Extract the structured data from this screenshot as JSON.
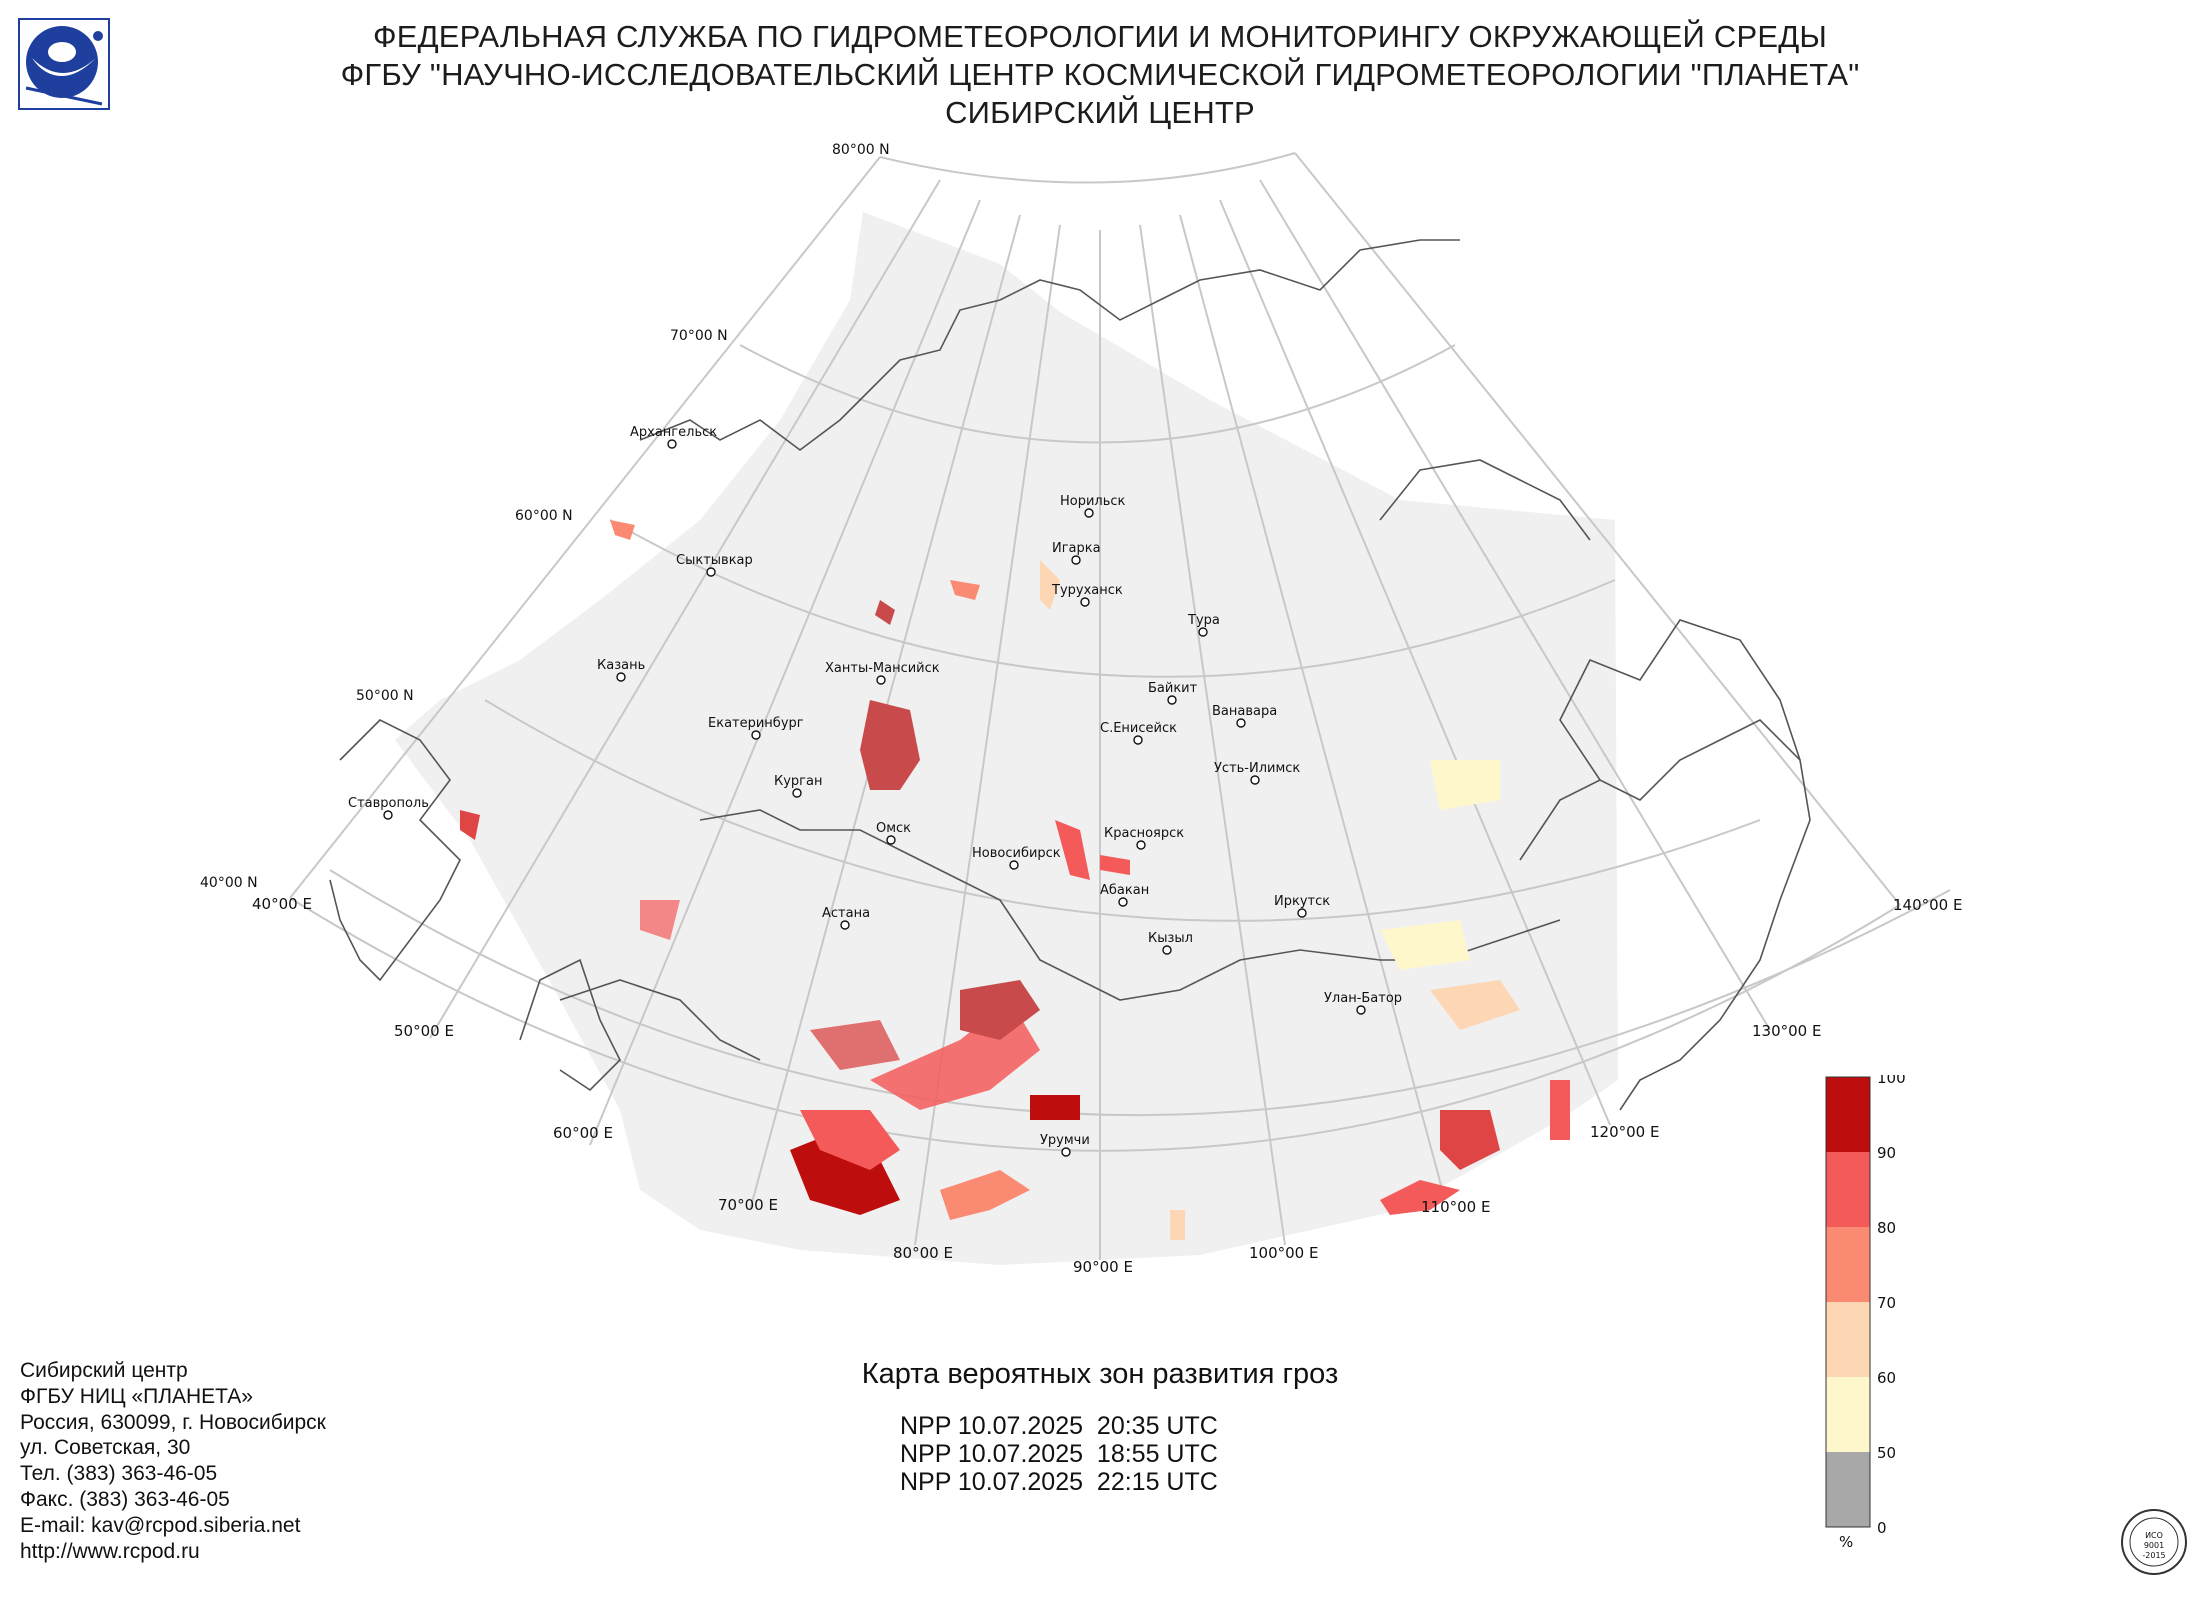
{
  "header": {
    "line1": "ФЕДЕРАЛЬНАЯ СЛУЖБА ПО ГИДРОМЕТЕОРОЛОГИИ И МОНИТОРИНГУ ОКРУЖАЮЩЕЙ СРЕДЫ",
    "line2": "ФГБУ \"НАУЧНО-ИССЛЕДОВАТЕЛЬСКИЙ ЦЕНТР КОСМИЧЕСКОЙ ГИДРОМЕТЕОРОЛОГИИ \"ПЛАНЕТА\"",
    "line3": "СИБИРСКИЙ ЦЕНТР"
  },
  "logo": {
    "icon": "planeta-logo",
    "color": "#1f3f9f"
  },
  "map": {
    "lat_labels": [
      "80°00 N",
      "70°00 N",
      "60°00 N",
      "50°00 N",
      "40°00 N"
    ],
    "lon_labels": [
      "40°00 E",
      "50°00 E",
      "60°00 E",
      "70°00 E",
      "80°00 E",
      "90°00 E",
      "100°00 E",
      "110°00 E",
      "120°00 E",
      "130°00 E",
      "140°00 E"
    ],
    "cities": [
      {
        "name": "Архангельск"
      },
      {
        "name": "Сыктывкар"
      },
      {
        "name": "Казань"
      },
      {
        "name": "Екатеринбург"
      },
      {
        "name": "Курган"
      },
      {
        "name": "Ставрополь"
      },
      {
        "name": "Ханты-Мансийск"
      },
      {
        "name": "Омск"
      },
      {
        "name": "Астана"
      },
      {
        "name": "Новосибирск"
      },
      {
        "name": "Норильск"
      },
      {
        "name": "Игарка"
      },
      {
        "name": "Туруханск"
      },
      {
        "name": "Тура"
      },
      {
        "name": "Байкит"
      },
      {
        "name": "С.Енисейск"
      },
      {
        "name": "Ванавара"
      },
      {
        "name": "Усть-Илимск"
      },
      {
        "name": "Красноярск"
      },
      {
        "name": "Абакан"
      },
      {
        "name": "Кызыл"
      },
      {
        "name": "Иркутск"
      },
      {
        "name": "Улан-Батор"
      },
      {
        "name": "Урумчи"
      }
    ],
    "colors": {
      "land": "#f0f0f0",
      "grid": "#c8c8c8",
      "border": "#555555"
    }
  },
  "legend": {
    "ticks": [
      "100",
      "90",
      "80",
      "70",
      "60",
      "50",
      "0"
    ],
    "unit": "%",
    "colors": [
      "#bd0d0d",
      "#f45a5a",
      "#fb8a72",
      "#fdd6b4",
      "#fff7cc",
      "#a8a8a8"
    ]
  },
  "map_title": "Карта вероятных зон развития гроз",
  "passes": [
    "NPP 10.07.2025  20:35 UTC",
    "NPP 10.07.2025  18:55 UTC",
    "NPP 10.07.2025  22:15 UTC"
  ],
  "contacts": [
    "Сибирский центр",
    "ФГБУ НИЦ «ПЛАНЕТА»",
    "Россия, 630099, г. Новосибирск",
    "ул. Советская, 30",
    "Тел. (383) 363-46-05",
    "Факс. (383) 363-46-05",
    "E-mail: kav@rcpod.siberia.net",
    "http://www.rcpod.ru"
  ],
  "iso_badge": {
    "text": "ИСО 9001 -2015",
    "icon": "iso-certification-icon"
  }
}
